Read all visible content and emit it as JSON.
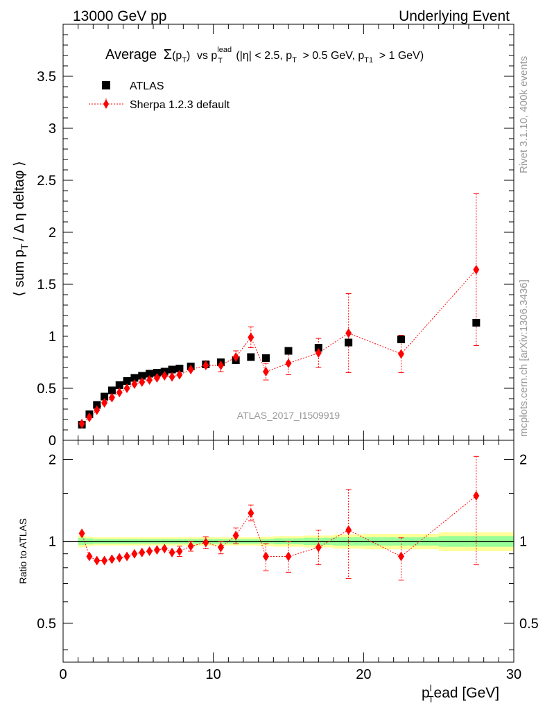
{
  "header": {
    "left": "13000 GeV pp",
    "right": "Underlying Event"
  },
  "side_labels": {
    "rivet": "Rivet 3.1.10,  400k events",
    "mcplots": "mcplots.cern.ch [arXiv:1306.3436]"
  },
  "colors": {
    "data": "#000000",
    "mc": "#ff0000",
    "band_inner": "#99ff99",
    "band_outer": "#ffff99",
    "watermark": "#999999"
  },
  "chart_data": [
    {
      "type": "scatter",
      "title": "Average Σ(pT) vs pT^lead (|η| < 2.5, pT > 0.5 GeV, pT1 > 1 GeV)",
      "title_parts": {
        "average": "Average",
        "sigma": "Σ",
        "pt": "(p",
        "pt_sub": "T",
        "pt_close": ")",
        "vs": "vs p",
        "lead_sub": "T",
        "lead_sup": "lead",
        "cuts_a": "(|η| < 2.5, p",
        "cuts_a_sub": "T",
        "cuts_b": "> 0.5 GeV, p",
        "cuts_b_sub": "T1",
        "cuts_c": "> 1 GeV)"
      },
      "ylabel": "⟨ sum p_T / Δ η deltaφ ⟩",
      "ylabel_parts": {
        "main": "⟨ sum p",
        "sub": "T",
        "rest": "/ Δ η deltaφ ⟩"
      },
      "xlim": [
        0,
        30
      ],
      "ylim": [
        0,
        4
      ],
      "yticks": [
        0,
        0.5,
        1,
        1.5,
        2,
        2.5,
        3,
        3.5
      ],
      "ytick_labels": [
        "0",
        "0.5",
        "1",
        "1.5",
        "2",
        "2.5",
        "3",
        "3.5"
      ],
      "analysis_tag": "ATLAS_2017_I1509919",
      "legend": [
        "ATLAS",
        "Sherpa 1.2.3 default"
      ],
      "series": [
        {
          "name": "ATLAS",
          "marker": "square",
          "x": [
            1.25,
            1.75,
            2.25,
            2.75,
            3.25,
            3.75,
            4.25,
            4.75,
            5.25,
            5.75,
            6.25,
            6.75,
            7.25,
            7.75,
            8.5,
            9.5,
            10.5,
            11.5,
            12.5,
            13.5,
            15,
            17,
            19,
            22.5,
            27.5
          ],
          "y": [
            0.15,
            0.25,
            0.34,
            0.42,
            0.48,
            0.53,
            0.57,
            0.6,
            0.62,
            0.64,
            0.65,
            0.66,
            0.68,
            0.69,
            0.71,
            0.73,
            0.75,
            0.77,
            0.8,
            0.79,
            0.86,
            0.89,
            0.94,
            0.97,
            1.13
          ]
        },
        {
          "name": "Sherpa 1.2.3 default",
          "marker": "diamond",
          "x": [
            1.25,
            1.75,
            2.25,
            2.75,
            3.25,
            3.75,
            4.25,
            4.75,
            5.25,
            5.75,
            6.25,
            6.75,
            7.25,
            7.75,
            8.5,
            9.5,
            10.5,
            11.5,
            12.5,
            13.5,
            15,
            17,
            19,
            22.5,
            27.5
          ],
          "y": [
            0.16,
            0.22,
            0.29,
            0.36,
            0.41,
            0.46,
            0.5,
            0.54,
            0.56,
            0.58,
            0.6,
            0.62,
            0.61,
            0.63,
            0.68,
            0.72,
            0.72,
            0.8,
            0.99,
            0.66,
            0.74,
            0.84,
            1.03,
            0.83,
            1.64
          ],
          "yerr": [
            0.01,
            0.01,
            0.01,
            0.01,
            0.01,
            0.01,
            0.01,
            0.02,
            0.02,
            0.02,
            0.02,
            0.03,
            0.04,
            0.04,
            0.04,
            0.05,
            0.06,
            0.06,
            0.1,
            0.08,
            0.11,
            0.14,
            0.38,
            0.18,
            0.73
          ]
        }
      ]
    },
    {
      "type": "scatter",
      "title": "Ratio to ATLAS",
      "ylabel": "Ratio to ATLAS",
      "xlabel": "p_T^lead [GeV]",
      "xlabel_parts": {
        "main": "p",
        "sub": "T",
        "sup": "l",
        "rest": "ead [GeV]"
      },
      "xlim": [
        0,
        30
      ],
      "xticks": [
        0,
        10,
        20,
        30
      ],
      "xtick_labels": [
        "0",
        "10",
        "20",
        "30"
      ],
      "ylim": [
        0.36,
        2.35
      ],
      "scale": "log",
      "yticks": [
        0.5,
        1,
        2
      ],
      "ytick_labels": [
        "0.5",
        "1",
        "2"
      ],
      "bands": {
        "edges": [
          1,
          1.5,
          2,
          2.5,
          3,
          3.5,
          4,
          4.5,
          5,
          5.5,
          6,
          6.5,
          7,
          7.5,
          8,
          9,
          10,
          11,
          12,
          13,
          14,
          16,
          18,
          20,
          25,
          30
        ],
        "inner": [
          0.03,
          0.025,
          0.02,
          0.02,
          0.02,
          0.02,
          0.02,
          0.02,
          0.02,
          0.02,
          0.02,
          0.02,
          0.02,
          0.02,
          0.02,
          0.02,
          0.02,
          0.02,
          0.02,
          0.02,
          0.025,
          0.03,
          0.035,
          0.035,
          0.045
        ],
        "outer": [
          0.05,
          0.04,
          0.035,
          0.035,
          0.035,
          0.035,
          0.035,
          0.035,
          0.035,
          0.035,
          0.035,
          0.035,
          0.035,
          0.035,
          0.035,
          0.035,
          0.035,
          0.035,
          0.035,
          0.04,
          0.045,
          0.05,
          0.06,
          0.065,
          0.08
        ]
      },
      "series": [
        {
          "name": "Sherpa 1.2.3 default",
          "x": [
            1.25,
            1.75,
            2.25,
            2.75,
            3.25,
            3.75,
            4.25,
            4.75,
            5.25,
            5.75,
            6.25,
            6.75,
            7.25,
            7.75,
            8.5,
            9.5,
            10.5,
            11.5,
            12.5,
            13.5,
            15,
            17,
            19,
            22.5,
            27.5
          ],
          "y": [
            1.07,
            0.88,
            0.85,
            0.85,
            0.86,
            0.87,
            0.88,
            0.9,
            0.91,
            0.92,
            0.93,
            0.94,
            0.91,
            0.92,
            0.96,
            0.99,
            0.95,
            1.05,
            1.27,
            0.88,
            0.88,
            0.95,
            1.1,
            0.88,
            1.47
          ],
          "ylow": [
            1.04,
            0.86,
            0.84,
            0.84,
            0.85,
            0.86,
            0.87,
            0.88,
            0.89,
            0.9,
            0.9,
            0.91,
            0.88,
            0.88,
            0.92,
            0.94,
            0.9,
            0.98,
            1.19,
            0.78,
            0.77,
            0.82,
            0.73,
            0.72,
            0.82
          ],
          "yhigh": [
            1.1,
            0.9,
            0.86,
            0.86,
            0.87,
            0.88,
            0.89,
            0.92,
            0.93,
            0.94,
            0.96,
            0.97,
            0.94,
            0.96,
            1.0,
            1.04,
            1.0,
            1.12,
            1.36,
            0.98,
            1.0,
            1.1,
            1.55,
            1.03,
            2.05
          ]
        }
      ]
    }
  ]
}
